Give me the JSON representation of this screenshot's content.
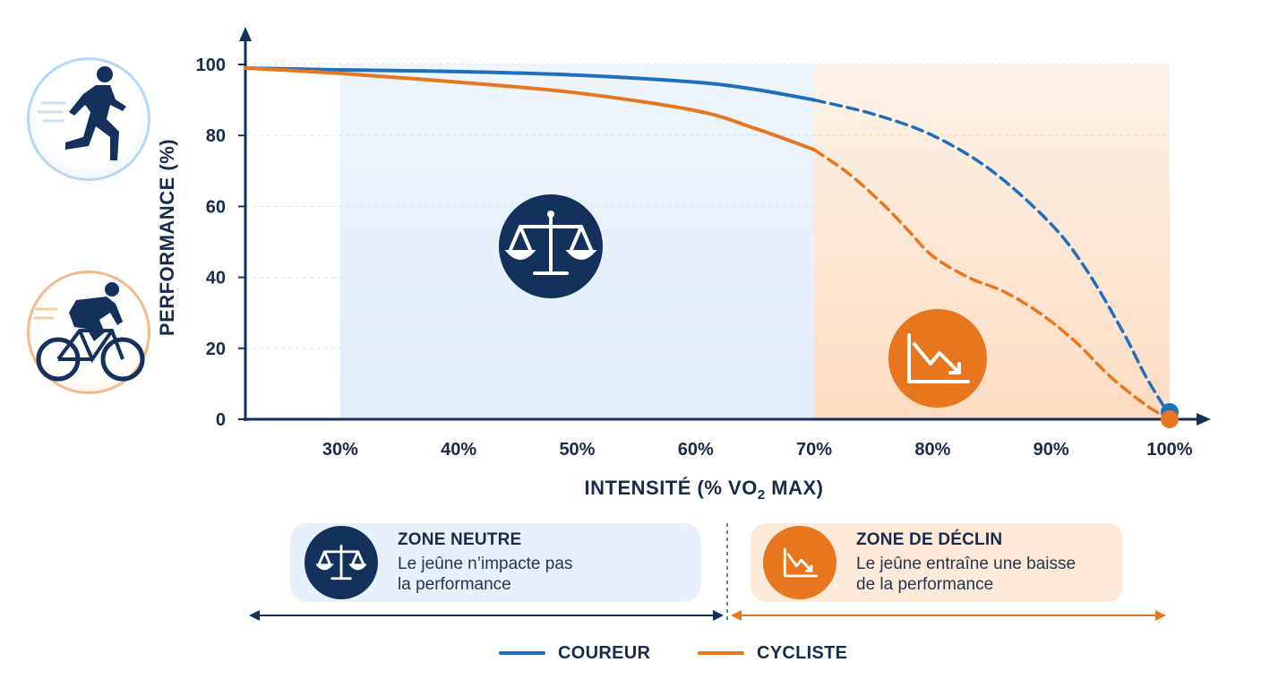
{
  "chart_data": {
    "type": "line",
    "title": "",
    "xlabel_main": "INTENSITÉ (% VO",
    "xlabel_sub": "2",
    "xlabel_end": " MAX)",
    "ylabel": "PERFORMANCE (%)",
    "xlim": [
      22,
      100
    ],
    "ylim": [
      0,
      100
    ],
    "x_ticks": [
      30,
      40,
      50,
      60,
      70,
      80,
      90,
      100
    ],
    "x_tick_labels": [
      "30%",
      "40%",
      "50%",
      "60%",
      "70%",
      "80%",
      "90%",
      "100%"
    ],
    "y_ticks": [
      0,
      20,
      40,
      60,
      80,
      100
    ],
    "y_tick_labels": [
      "0",
      "20",
      "40",
      "60",
      "80",
      "100"
    ],
    "grid": true,
    "zones": [
      {
        "name": "neutre",
        "x_start": 30,
        "x_end": 70,
        "color": "#e8f1fb"
      },
      {
        "name": "declin",
        "x_start": 70,
        "x_end": 100,
        "color": "#fdeadb"
      }
    ],
    "series": [
      {
        "name": "COUREUR",
        "color": "#1f6fbf",
        "solid": {
          "x": [
            22,
            30,
            40,
            50,
            60,
            65,
            70
          ],
          "y": [
            99,
            98.5,
            98,
            97,
            95,
            93,
            90
          ]
        },
        "dashed": {
          "x": [
            70,
            75,
            80,
            85,
            90,
            93,
            96,
            98,
            100
          ],
          "y": [
            90,
            86,
            80,
            70,
            55,
            42,
            25,
            12,
            1
          ]
        }
      },
      {
        "name": "CYCLISTE",
        "color": "#e8761f",
        "solid": {
          "x": [
            22,
            30,
            40,
            50,
            60,
            65,
            70
          ],
          "y": [
            99,
            97.5,
            95,
            92,
            87,
            82,
            76
          ]
        },
        "dashed": {
          "x": [
            70,
            73,
            76,
            78,
            80,
            83,
            86,
            89,
            92,
            95,
            98,
            100
          ],
          "y": [
            76,
            69,
            60,
            53,
            46,
            40,
            36,
            30,
            22,
            12,
            4,
            0
          ]
        }
      }
    ]
  },
  "zones": {
    "neutral": {
      "title": "ZONE NEUTRE",
      "line1": "Le jeûne n’impacte pas",
      "line2": "la performance"
    },
    "decline": {
      "title": "ZONE DE DÉCLIN",
      "line1": "Le jeûne entraîne une baisse",
      "line2": "de la performance"
    }
  },
  "legend": [
    {
      "label": "COUREUR",
      "color": "#1f6fbf"
    },
    {
      "label": "CYCLISTE",
      "color": "#e8761f"
    }
  ],
  "icons": {
    "runner": "runner-icon",
    "cyclist": "cyclist-icon",
    "scale": "balance-scale-icon",
    "decline": "declining-chart-icon"
  },
  "colors": {
    "navy": "#13315c",
    "blue": "#1f6fbf",
    "orange": "#e8761f",
    "neutral_zone": "#e8f1fb",
    "decline_zone": "#fdeadb"
  }
}
